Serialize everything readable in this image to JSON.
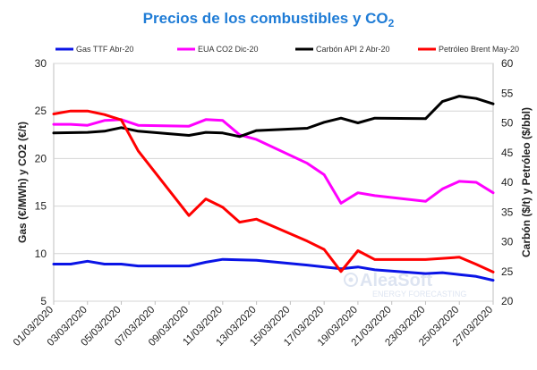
{
  "chart_data": {
    "type": "line",
    "title": "Precios de los combustibles y CO",
    "title_subscript": "2",
    "ylabel_left": "Gas (€/MWh) y CO2 (€/t)",
    "ylabel_right": "Carbón ($/t) y Petróleo ($/bbl)",
    "ylim_left": [
      5,
      30
    ],
    "ylim_right": [
      20,
      60
    ],
    "yticks_left": [
      5,
      10,
      15,
      20,
      25,
      30
    ],
    "yticks_right": [
      20,
      25,
      30,
      35,
      40,
      45,
      50,
      55,
      60
    ],
    "xlim": [
      "01/03/2020",
      "27/03/2020"
    ],
    "xticks": [
      "01/03/2020",
      "03/03/2020",
      "05/03/2020",
      "07/03/2020",
      "09/03/2020",
      "11/03/2020",
      "13/03/2020",
      "15/03/2020",
      "17/03/2020",
      "19/03/2020",
      "21/03/2020",
      "23/03/2020",
      "25/03/2020",
      "27/03/2020"
    ],
    "grid": true,
    "legend_position": "top",
    "series": [
      {
        "name": "Gas TTF Abr-20",
        "axis": "left",
        "color": "#0a14e6",
        "points": [
          [
            "01/03/2020",
            8.9
          ],
          [
            "02/03/2020",
            8.9
          ],
          [
            "03/03/2020",
            9.2
          ],
          [
            "04/03/2020",
            8.9
          ],
          [
            "05/03/2020",
            8.9
          ],
          [
            "06/03/2020",
            8.7
          ],
          [
            "09/03/2020",
            8.7
          ],
          [
            "10/03/2020",
            9.1
          ],
          [
            "11/03/2020",
            9.4
          ],
          [
            "13/03/2020",
            9.3
          ],
          [
            "16/03/2020",
            8.8
          ],
          [
            "18/03/2020",
            8.4
          ],
          [
            "19/03/2020",
            8.6
          ],
          [
            "20/03/2020",
            8.3
          ],
          [
            "23/03/2020",
            7.9
          ],
          [
            "24/03/2020",
            8.0
          ],
          [
            "25/03/2020",
            7.8
          ],
          [
            "26/03/2020",
            7.6
          ],
          [
            "27/03/2020",
            7.2
          ]
        ]
      },
      {
        "name": "EUA CO2 Dic-20",
        "axis": "left",
        "color": "#ff00ff",
        "points": [
          [
            "01/03/2020",
            23.6
          ],
          [
            "02/03/2020",
            23.6
          ],
          [
            "03/03/2020",
            23.5
          ],
          [
            "04/03/2020",
            24.0
          ],
          [
            "05/03/2020",
            24.1
          ],
          [
            "06/03/2020",
            23.5
          ],
          [
            "09/03/2020",
            23.4
          ],
          [
            "10/03/2020",
            24.1
          ],
          [
            "11/03/2020",
            24.0
          ],
          [
            "12/03/2020",
            22.5
          ],
          [
            "13/03/2020",
            22.0
          ],
          [
            "16/03/2020",
            19.5
          ],
          [
            "17/03/2020",
            18.3
          ],
          [
            "18/03/2020",
            15.3
          ],
          [
            "19/03/2020",
            16.4
          ],
          [
            "20/03/2020",
            16.1
          ],
          [
            "23/03/2020",
            15.5
          ],
          [
            "24/03/2020",
            16.8
          ],
          [
            "25/03/2020",
            17.6
          ],
          [
            "26/03/2020",
            17.5
          ],
          [
            "27/03/2020",
            16.4
          ]
        ]
      },
      {
        "name": "Carbón API 2 Abr-20",
        "axis": "right",
        "color": "#000000",
        "points": [
          [
            "01/03/2020",
            48.3
          ],
          [
            "03/03/2020",
            48.4
          ],
          [
            "04/03/2020",
            48.6
          ],
          [
            "05/03/2020",
            49.2
          ],
          [
            "06/03/2020",
            48.6
          ],
          [
            "09/03/2020",
            47.9
          ],
          [
            "10/03/2020",
            48.4
          ],
          [
            "11/03/2020",
            48.3
          ],
          [
            "12/03/2020",
            47.7
          ],
          [
            "13/03/2020",
            48.7
          ],
          [
            "16/03/2020",
            49.1
          ],
          [
            "17/03/2020",
            50.1
          ],
          [
            "18/03/2020",
            50.8
          ],
          [
            "19/03/2020",
            50.0
          ],
          [
            "20/03/2020",
            50.8
          ],
          [
            "23/03/2020",
            50.7
          ],
          [
            "24/03/2020",
            53.6
          ],
          [
            "25/03/2020",
            54.5
          ],
          [
            "26/03/2020",
            54.1
          ],
          [
            "27/03/2020",
            53.2
          ]
        ]
      },
      {
        "name": "Petróleo Brent May-20",
        "axis": "right",
        "color": "#ff0000",
        "points": [
          [
            "01/03/2020",
            51.5
          ],
          [
            "02/03/2020",
            52.0
          ],
          [
            "03/03/2020",
            52.0
          ],
          [
            "04/03/2020",
            51.4
          ],
          [
            "05/03/2020",
            50.5
          ],
          [
            "06/03/2020",
            45.3
          ],
          [
            "09/03/2020",
            34.4
          ],
          [
            "10/03/2020",
            37.2
          ],
          [
            "11/03/2020",
            35.8
          ],
          [
            "12/03/2020",
            33.3
          ],
          [
            "13/03/2020",
            33.8
          ],
          [
            "16/03/2020",
            30.1
          ],
          [
            "17/03/2020",
            28.7
          ],
          [
            "18/03/2020",
            25.0
          ],
          [
            "19/03/2020",
            28.5
          ],
          [
            "20/03/2020",
            27.0
          ],
          [
            "23/03/2020",
            27.0
          ],
          [
            "24/03/2020",
            27.2
          ],
          [
            "25/03/2020",
            27.4
          ],
          [
            "26/03/2020",
            26.2
          ],
          [
            "27/03/2020",
            24.9
          ]
        ]
      }
    ]
  },
  "watermark": {
    "name": "AleaSoft",
    "tagline": "ENERGY FORECASTING"
  }
}
